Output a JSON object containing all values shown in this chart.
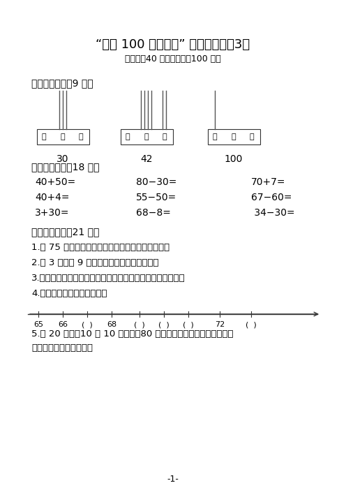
{
  "title": "“认识 100 以内的数” 同步测试卷（3）",
  "subtitle": "（时间：40 分钟；满分：100 分）",
  "section1": "一、画一画。（9 分）",
  "abacus_labels": [
    "百",
    "十",
    "个"
  ],
  "abacus_numbers": [
    "30",
    "42",
    "100"
  ],
  "section2": "二、算一算。（18 分）",
  "calc_rows": [
    [
      "40+50=",
      "80−30=",
      "70+7="
    ],
    [
      "40+4=",
      "55−50=",
      "67−60="
    ],
    [
      "3+30=",
      "68−8=",
      " 34−30="
    ]
  ],
  "section3": "三、填一填。（21 分）",
  "fill_items": [
    "1.　 75 里面有（　　　）个十和（　　　）个一。",
    "2.　 3 个一和 9 个十组成的数是（　　　）。",
    "3.最大的两位数是（　　　），最小的三位数是（　　　）。",
    "4.按顺序在（　　）里填数。"
  ],
  "number_line_labels": [
    "65",
    "66",
    "(  )",
    "68",
    "(  )",
    "(  )",
    "(  )",
    "72",
    "(  )"
  ],
  "fill_item5": "5.从 20 开始，10 个 10 个地数，80 前面一个数是（　　　　），后",
  "fill_item5b": "面一个数是（　　　）。",
  "page_num": "-1-",
  "bg_color": "#ffffff",
  "text_color": "#000000",
  "line_color": "#555555"
}
